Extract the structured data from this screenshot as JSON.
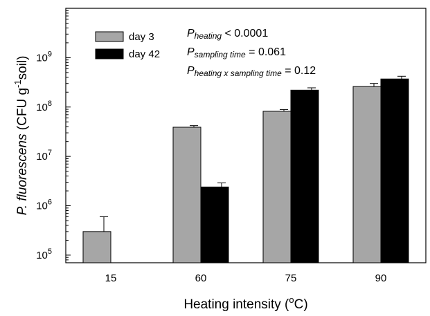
{
  "chart_data": {
    "type": "bar",
    "yscale": "log",
    "ylim": [
      70000,
      10000000000
    ],
    "categories": [
      "15",
      "60",
      "75",
      "90"
    ],
    "series": [
      {
        "name": "day 3",
        "color": "#a6a6a6",
        "values": [
          300000,
          39000000,
          82000000,
          260000000
        ],
        "errors": [
          600000,
          42000000,
          89000000,
          300000000
        ]
      },
      {
        "name": "day 42",
        "color": "#000000",
        "values": [
          null,
          2400000,
          220000000,
          370000000
        ],
        "errors": [
          null,
          2900000,
          245000000,
          420000000
        ]
      }
    ],
    "y_ticks": [
      {
        "value": 100000,
        "base": "10",
        "exp": "5"
      },
      {
        "value": 1000000,
        "base": "10",
        "exp": "6"
      },
      {
        "value": 10000000,
        "base": "10",
        "exp": "7"
      },
      {
        "value": 100000000,
        "base": "10",
        "exp": "8"
      },
      {
        "value": 1000000000,
        "base": "10",
        "exp": "9"
      }
    ],
    "xlabel": {
      "main": "Heating intensity (",
      "sup": "o",
      "end": "C)"
    },
    "ylabel": {
      "italic": "P. fluorescens",
      "pre": " (CFU g",
      "sup": "-1",
      "post": "soil)"
    },
    "annotations": [
      {
        "p": "P",
        "sub": "heating",
        "text": " < 0.0001"
      },
      {
        "p": "P",
        "sub": "sampling time",
        "text": " = 0.061"
      },
      {
        "p": "P",
        "sub": "heating x sampling time",
        "text": " = 0.12"
      }
    ],
    "legend_position": "top-left",
    "grid": false
  }
}
